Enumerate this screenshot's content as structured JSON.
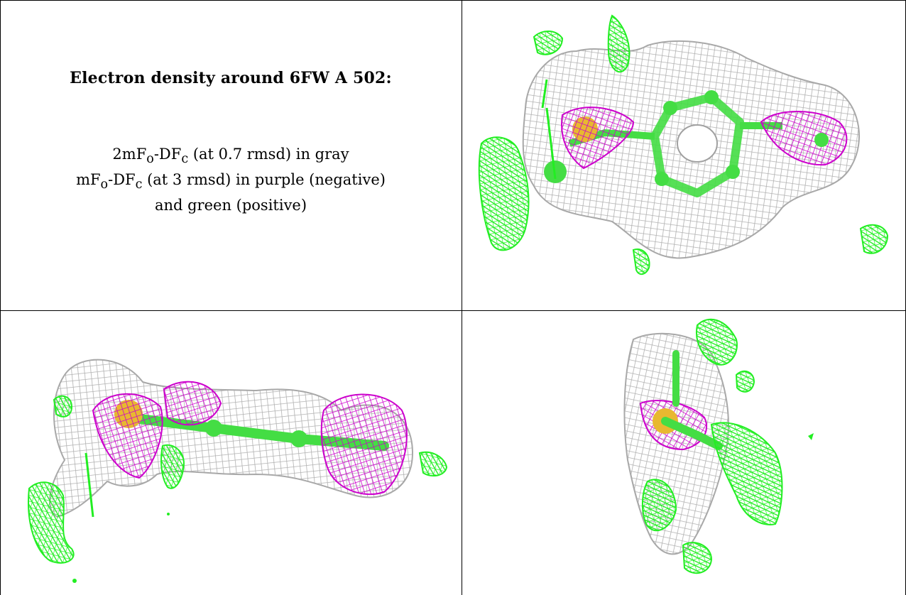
{
  "caption": {
    "title": "Electron density around 6FW A 502:",
    "line1": "2mFₒ-DF𝒸 (at 0.7 rmsd) in gray",
    "line1_parts": {
      "a": "2mF",
      "sub1": "o",
      "b": "-DF",
      "sub2": "c",
      "c": " (at 0.7 rmsd) in gray"
    },
    "line2_parts": {
      "a": "mF",
      "sub1": "o",
      "b": "-DF",
      "sub2": "c",
      "c": " (at 3 rmsd) in purple (negative)"
    },
    "line3": "and green (positive)"
  },
  "colors": {
    "mesh_2fofc": "#b0b0b0",
    "mesh_negative": "#cc00cc",
    "mesh_positive": "#22ee22",
    "ligand_carbon": "#44dd44",
    "sulfur": "#e8b830"
  },
  "panels": [
    {
      "name": "view-top-right",
      "content": "density-mesh-view-1"
    },
    {
      "name": "view-bottom-left",
      "content": "density-mesh-view-2"
    },
    {
      "name": "view-bottom-right",
      "content": "density-mesh-view-3"
    }
  ]
}
